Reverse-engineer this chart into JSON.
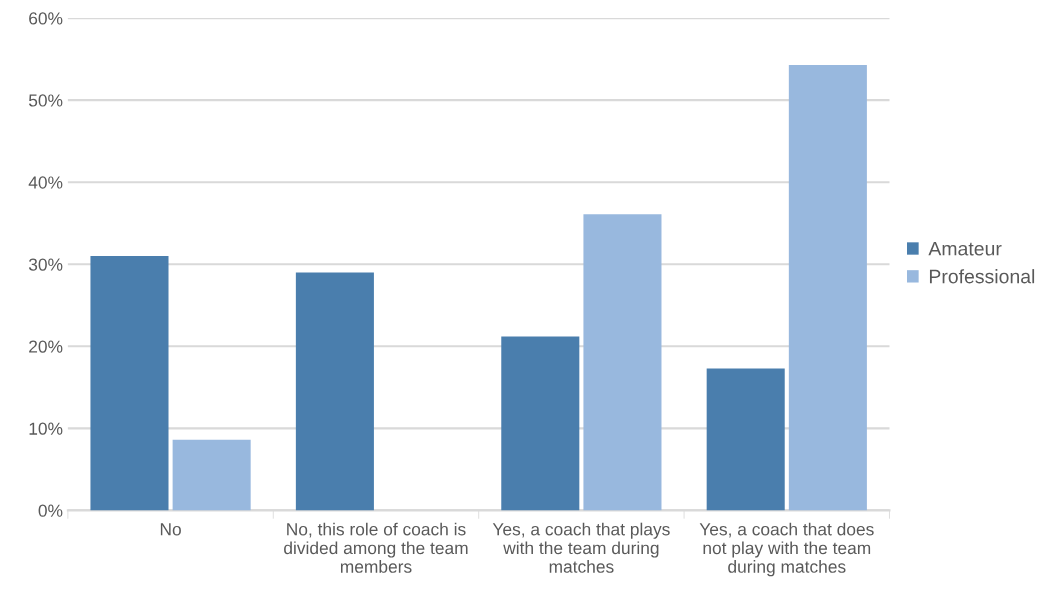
{
  "chart_data": {
    "type": "bar",
    "categories": [
      "No",
      "No, this role of coach is divided among the team members",
      "Yes, a coach that plays with the team during matches",
      "Yes, a coach that does not play with the team during matches"
    ],
    "series": [
      {
        "name": "Amateur",
        "color": "#4a7ead",
        "values": [
          31.0,
          29.0,
          21.2,
          17.3
        ]
      },
      {
        "name": "Professional",
        "color": "#98b8de",
        "values": [
          8.6,
          0,
          36.1,
          54.3
        ]
      }
    ],
    "ylim": [
      0,
      60
    ],
    "yticks": [
      {
        "value": 0,
        "label": "0%"
      },
      {
        "value": 10,
        "label": "10%"
      },
      {
        "value": 20,
        "label": "20%"
      },
      {
        "value": 30,
        "label": "30%"
      },
      {
        "value": 40,
        "label": "40%"
      },
      {
        "value": 50,
        "label": "50%"
      },
      {
        "value": 60,
        "label": "60%"
      }
    ],
    "grid": "y",
    "legend": "right"
  }
}
